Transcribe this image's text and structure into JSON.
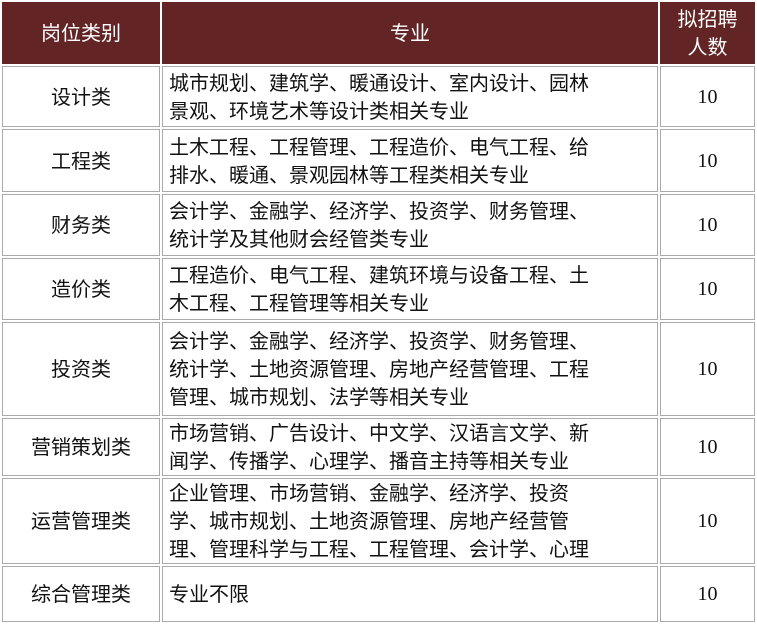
{
  "header": {
    "category": "岗位类别",
    "major": "专业",
    "count_lines": [
      "拟招聘",
      "人数"
    ]
  },
  "colors": {
    "header_bg": "#622424",
    "border": "#aaaaaa"
  },
  "rows": [
    {
      "category": "设计类",
      "major_lines": [
        "城市规划、建筑学、暖通设计、室内设计、园林",
        "景观、环境艺术等设计类相关专业"
      ],
      "count": "10"
    },
    {
      "category": "工程类",
      "major_lines": [
        "土木工程、工程管理、工程造价、电气工程、给",
        "排水、暖通、景观园林等工程类相关专业"
      ],
      "count": "10"
    },
    {
      "category": "财务类",
      "major_lines": [
        "会计学、金融学、经济学、投资学、财务管理、",
        "统计学及其他财会经管类专业"
      ],
      "count": "10"
    },
    {
      "category": "造价类",
      "major_lines": [
        "工程造价、电气工程、建筑环境与设备工程、土",
        "木工程、工程管理等相关专业"
      ],
      "count": "10"
    },
    {
      "category": "投资类",
      "major_lines": [
        "会计学、金融学、经济学、投资学、财务管理、",
        "统计学、土地资源管理、房地产经营管理、工程",
        "管理、城市规划、法学等相关专业"
      ],
      "count": "10"
    },
    {
      "category": "营销策划类",
      "major_lines": [
        "市场营销、广告设计、中文学、汉语言文学、新",
        "闻学、传播学、心理学、播音主持等相关专业"
      ],
      "count": "10"
    },
    {
      "category": "运营管理类",
      "major_lines": [
        "企业管理、市场营销、金融学、经济学、投资",
        "学、城市规划、土地资源管理、房地产经营管",
        "理、管理科学与工程、工程管理、会计学、心理"
      ],
      "count": "10"
    },
    {
      "category": "综合管理类",
      "major_lines": [
        "专业不限"
      ],
      "count": "10"
    }
  ]
}
